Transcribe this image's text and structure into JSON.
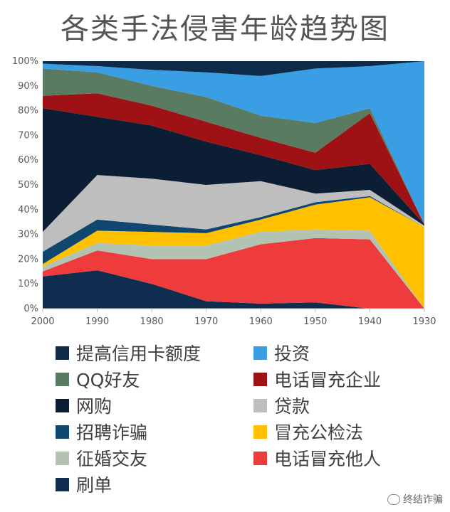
{
  "chart_data": {
    "type": "area",
    "stacked": "percent",
    "title": "各类手法侵害年龄趋势图",
    "categories": [
      "2000",
      "1990",
      "1980",
      "1970",
      "1960",
      "1950",
      "1940",
      "1930"
    ],
    "y_ticks": [
      "0%",
      "10%",
      "20%",
      "30%",
      "40%",
      "50%",
      "60%",
      "70%",
      "80%",
      "90%",
      "100%"
    ],
    "ylim": [
      0,
      100
    ],
    "grid": false,
    "series": [
      {
        "name": "刷单",
        "color": "#0E2D4F",
        "values": [
          13,
          15.5,
          10,
          3,
          2,
          2.5,
          0,
          0
        ]
      },
      {
        "name": "电话冒充他人",
        "color": "#EE3B3B",
        "values": [
          2,
          8,
          10,
          17,
          24,
          26,
          28,
          0
        ]
      },
      {
        "name": "征婚交友",
        "color": "#B3C3B3",
        "values": [
          2,
          3,
          5.5,
          5.5,
          5,
          3.5,
          3.5,
          0
        ]
      },
      {
        "name": "冒充公检法",
        "color": "#FFC000",
        "values": [
          1,
          5,
          5.5,
          5,
          5,
          10,
          13.5,
          33
        ]
      },
      {
        "name": "招聘诈骗",
        "color": "#10476E",
        "values": [
          5,
          4.5,
          3,
          1.5,
          1,
          1,
          0.5,
          0
        ]
      },
      {
        "name": "贷款",
        "color": "#BEBEBE",
        "values": [
          8,
          18,
          18.5,
          18,
          14.5,
          3.5,
          2.5,
          0.5
        ]
      },
      {
        "name": "网购",
        "color": "#0B1E33",
        "values": [
          50,
          23.5,
          21.5,
          17.5,
          10.5,
          9.5,
          10.5,
          0.5
        ]
      },
      {
        "name": "电话冒充企业",
        "color": "#9E1115",
        "values": [
          5,
          9.5,
          8,
          8,
          7,
          7,
          20.5,
          0
        ]
      },
      {
        "name": "QQ好友",
        "color": "#5A7B62",
        "values": [
          11,
          8.5,
          8,
          10,
          9,
          12,
          2,
          0
        ]
      },
      {
        "name": "投资",
        "color": "#3A9EE4",
        "values": [
          2,
          2.5,
          6.5,
          10,
          16,
          22,
          17,
          66
        ]
      },
      {
        "name": "提高信用卡额度",
        "color": "#0D2A49",
        "values": [
          1,
          2,
          3.5,
          4.5,
          6,
          3,
          2,
          0
        ]
      }
    ],
    "legend_order": [
      "提高信用卡额度",
      "投资",
      "QQ好友",
      "电话冒充企业",
      "网购",
      "贷款",
      "招聘诈骗",
      "冒充公检法",
      "征婚交友",
      "电话冒充他人",
      "刷单"
    ],
    "legend_position": "bottom"
  },
  "watermark": "终结诈骗"
}
